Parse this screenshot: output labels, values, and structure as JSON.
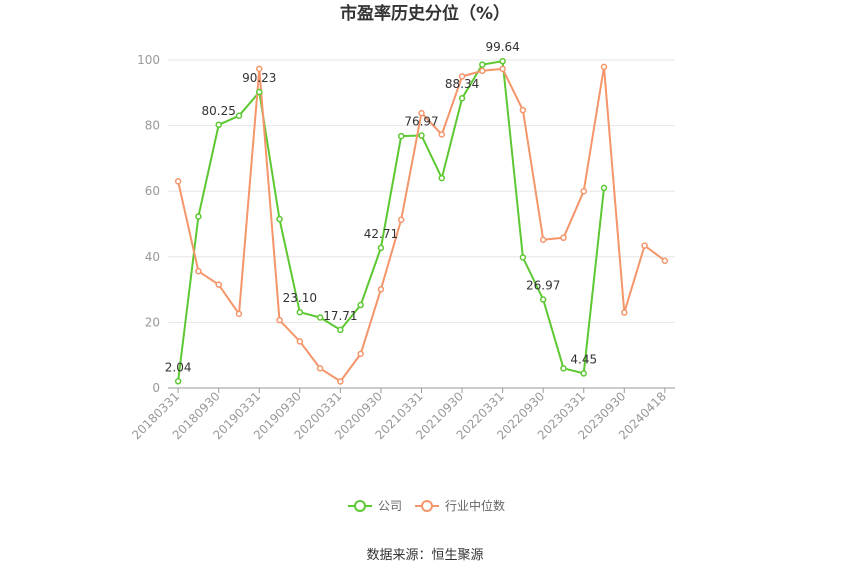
{
  "chart_data": {
    "type": "line",
    "title": "市盈率历史分位（%）",
    "source": "数据来源：恒生聚源",
    "ylim": [
      0,
      100
    ],
    "yticks": [
      "0",
      "20",
      "40",
      "60",
      "80",
      "100"
    ],
    "xtick_labels": [
      "20180331",
      "20180930",
      "20190331",
      "20190930",
      "20200331",
      "20200930",
      "20210331",
      "20210930",
      "20220331",
      "20220930",
      "20230331",
      "20230930",
      "20240418"
    ],
    "grid": true,
    "legend_position": "bottom",
    "categories": [
      "20180331",
      "20180630",
      "20180930",
      "20181231",
      "20190331",
      "20190630",
      "20190930",
      "20191231",
      "20200331",
      "20200630",
      "20200930",
      "20201231",
      "20210331",
      "20210630",
      "20210930",
      "20211231",
      "20220331",
      "20220630",
      "20220930",
      "20221231",
      "20230331",
      "20230630",
      "20230930",
      "20231231",
      "20240418"
    ],
    "series": [
      {
        "name": "公司",
        "color": "#5dc832",
        "values": [
          2.04,
          52.3,
          80.25,
          83.0,
          90.23,
          51.5,
          23.1,
          21.5,
          17.71,
          25.3,
          42.71,
          76.8,
          76.97,
          64.0,
          88.34,
          98.6,
          99.64,
          39.8,
          26.97,
          6.0,
          4.45,
          61.0,
          null,
          null,
          null
        ]
      },
      {
        "name": "行业中位数",
        "color": "#f4956a",
        "values": [
          63.0,
          35.6,
          31.5,
          22.6,
          97.3,
          20.7,
          14.2,
          6.0,
          2.0,
          10.4,
          30.1,
          51.3,
          83.8,
          77.3,
          95.0,
          96.7,
          97.3,
          84.7,
          45.2,
          45.8,
          60.0,
          97.9,
          23.0,
          43.4,
          38.8
        ]
      }
    ],
    "data_labels": [
      {
        "series": 0,
        "index": 0,
        "text": "2.04"
      },
      {
        "series": 0,
        "index": 2,
        "text": "80.25"
      },
      {
        "series": 0,
        "index": 4,
        "text": "90.23"
      },
      {
        "series": 0,
        "index": 6,
        "text": "23.10"
      },
      {
        "series": 0,
        "index": 8,
        "text": "17.71"
      },
      {
        "series": 0,
        "index": 10,
        "text": "42.71"
      },
      {
        "series": 0,
        "index": 12,
        "text": "76.97"
      },
      {
        "series": 0,
        "index": 14,
        "text": "88.34"
      },
      {
        "series": 0,
        "index": 16,
        "text": "99.64"
      },
      {
        "series": 0,
        "index": 18,
        "text": "26.97"
      },
      {
        "series": 0,
        "index": 20,
        "text": "4.45"
      }
    ]
  }
}
